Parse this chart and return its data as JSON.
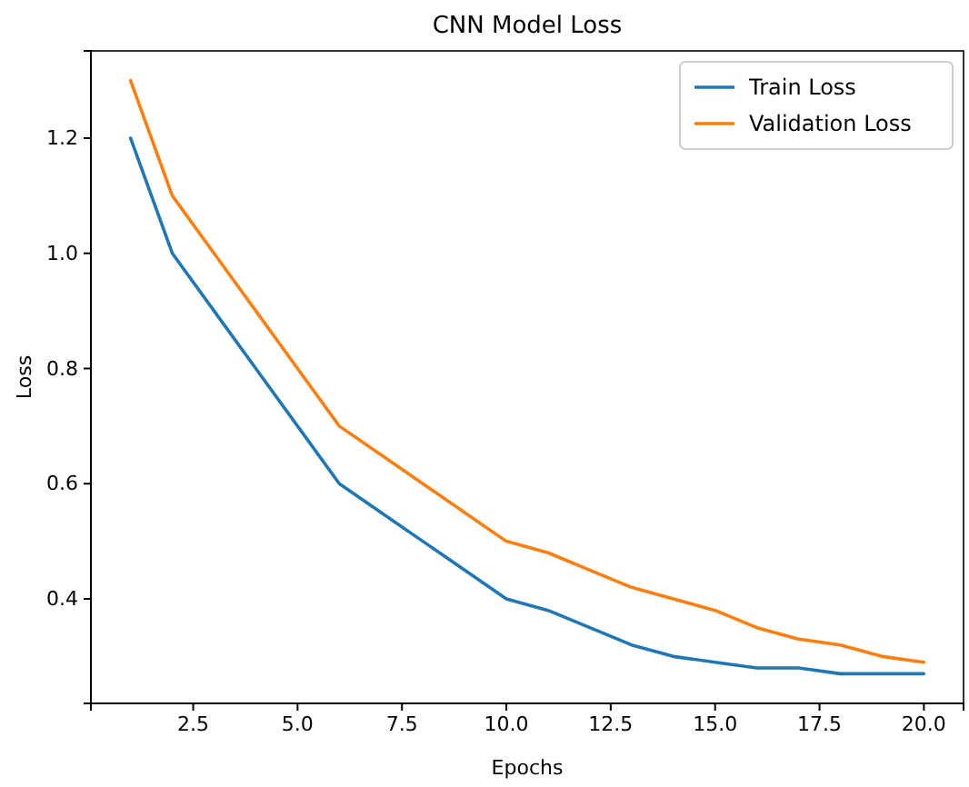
{
  "chart_data": {
    "type": "line",
    "title": "CNN Model Loss",
    "xlabel": "Epochs",
    "ylabel": "Loss",
    "x": [
      1,
      2,
      3,
      4,
      5,
      6,
      7,
      8,
      9,
      10,
      11,
      12,
      13,
      14,
      15,
      16,
      17,
      18,
      19,
      20
    ],
    "series": [
      {
        "name": "Train Loss",
        "color": "#1f77b4",
        "values": [
          1.2,
          1.0,
          0.9,
          0.8,
          0.7,
          0.6,
          0.55,
          0.5,
          0.45,
          0.4,
          0.38,
          0.35,
          0.32,
          0.3,
          0.29,
          0.28,
          0.28,
          0.27,
          0.27,
          0.27
        ]
      },
      {
        "name": "Validation Loss",
        "color": "#ff7f0e",
        "values": [
          1.3,
          1.1,
          1.0,
          0.9,
          0.8,
          0.7,
          0.65,
          0.6,
          0.55,
          0.5,
          0.48,
          0.45,
          0.42,
          0.4,
          0.38,
          0.35,
          0.33,
          0.32,
          0.3,
          0.29
        ]
      }
    ],
    "xlim": [
      0.05,
      20.95
    ],
    "ylim": [
      0.2185,
      1.3515
    ],
    "xticks": [
      {
        "value": 2.5,
        "label": "2.5"
      },
      {
        "value": 5,
        "label": "5.0"
      },
      {
        "value": 7.5,
        "label": "7.5"
      },
      {
        "value": 10,
        "label": "10.0"
      },
      {
        "value": 12.5,
        "label": "12.5"
      },
      {
        "value": 15,
        "label": "15.0"
      },
      {
        "value": 17.5,
        "label": "17.5"
      },
      {
        "value": 20,
        "label": "20.0"
      }
    ],
    "yticks": [
      0.4,
      0.6,
      0.8,
      {
        "value": 1,
        "label": "1.0"
      },
      1.2
    ],
    "legend": "top right",
    "grid": false,
    "line_style": "solid",
    "marker": "none"
  }
}
